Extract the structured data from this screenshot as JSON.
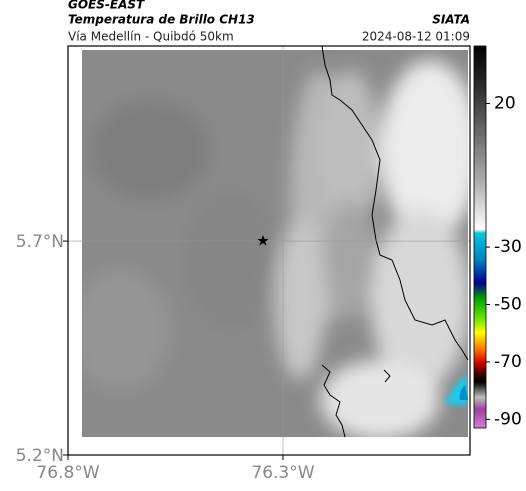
{
  "header": {
    "title": "GOES-EAST",
    "subtitle": "Temperatura de Brillo CH13",
    "source": "SIATA",
    "route": "Vía Medellín - Quibdó 50km",
    "timestamp": "2024-08-12 01:09"
  },
  "map": {
    "lon_range": [
      -76.8,
      -75.865
    ],
    "lat_range": [
      5.2,
      6.156
    ],
    "lat_ticks": [
      {
        "value": 5.7,
        "label": "5.7°N"
      },
      {
        "value": 5.2,
        "label": "5.2°N"
      }
    ],
    "lon_ticks": [
      {
        "value": -76.8,
        "label": "76.8°W"
      },
      {
        "value": -76.3,
        "label": "76.3°W"
      }
    ]
  },
  "colorbar": {
    "range": [
      40,
      -93
    ],
    "ticks": [
      20,
      -30,
      -50,
      -70,
      -90
    ]
  }
}
